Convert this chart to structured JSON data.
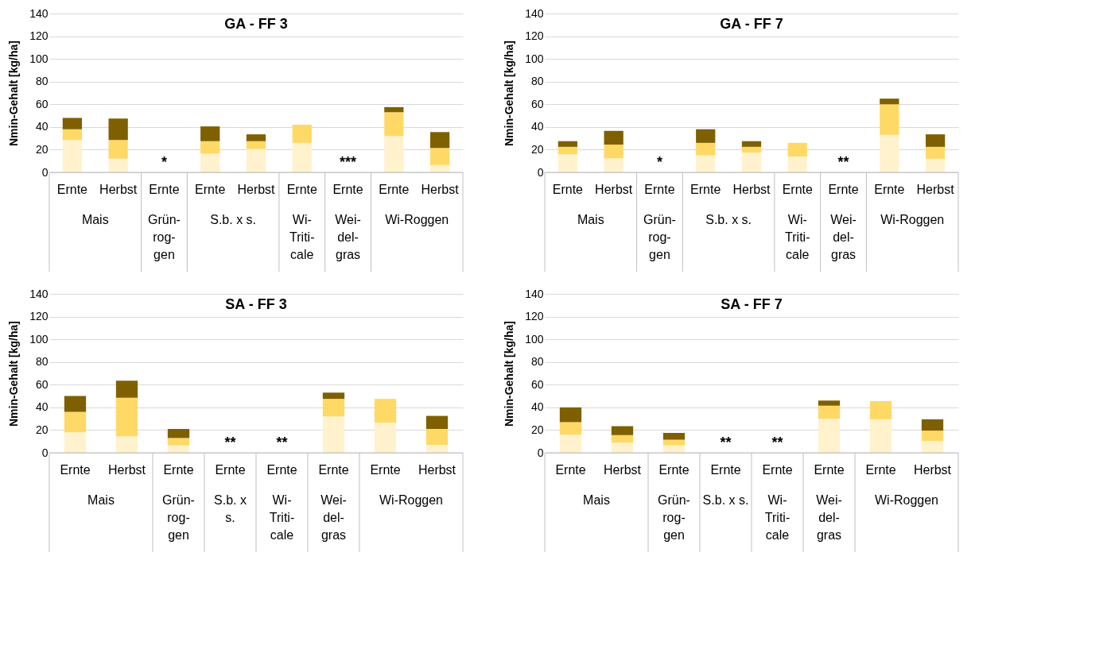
{
  "chart_data": [
    {
      "type": "bar",
      "stacked": true,
      "title": "GA - FF 3",
      "ylabel": "Nmin-Gehalt [kg/ha]",
      "categories": [
        "Ernte",
        "Herbst",
        "Ernte",
        "Ernte",
        "Herbst",
        "Ernte",
        "Ernte",
        "Ernte",
        "Herbst"
      ],
      "series": [
        {
          "color": "#fff2cc",
          "values": [
            28.5,
            12,
            null,
            16.5,
            20.5,
            26,
            null,
            32,
            6.5
          ]
        },
        {
          "color": "#ffd966",
          "values": [
            9.5,
            16.5,
            null,
            11,
            7,
            16,
            null,
            21,
            15
          ]
        },
        {
          "color": "#7f6000",
          "values": [
            10,
            19,
            null,
            13,
            6,
            null,
            null,
            4.5,
            14
          ]
        }
      ],
      "value_labels": [
        null,
        null,
        "*",
        null,
        null,
        null,
        "***",
        null,
        null
      ],
      "annotations": [
        "Mais",
        "Grün-\nrog-\ngen",
        "S.b. x s.",
        "Wi-\nTriti-\ncale",
        "Wei-\ndel-\ngras",
        "Wi-Roggen"
      ],
      "ylim": [
        0,
        140
      ],
      "yticks": [
        0,
        20,
        40,
        60,
        80,
        100,
        120,
        140
      ],
      "grid": "y"
    },
    {
      "type": "bar",
      "stacked": true,
      "title": "GA - FF 7",
      "ylabel": "Nmin-Gehalt [kg/ha]",
      "categories": [
        "Ernte",
        "Herbst",
        "Ernte",
        "Ernte",
        "Herbst",
        "Ernte",
        "Ernte",
        "Ernte",
        "Herbst"
      ],
      "series": [
        {
          "color": "#fff2cc",
          "values": [
            16,
            12.5,
            null,
            15,
            17.5,
            14,
            null,
            33,
            12
          ]
        },
        {
          "color": "#ffd966",
          "values": [
            6.5,
            12,
            null,
            11,
            5,
            12,
            null,
            27,
            10.5
          ]
        },
        {
          "color": "#7f6000",
          "values": [
            5,
            12,
            null,
            12,
            5,
            null,
            null,
            5,
            11
          ]
        }
      ],
      "value_labels": [
        null,
        null,
        "*",
        null,
        null,
        null,
        "**",
        null,
        null
      ],
      "annotations": [
        "Mais",
        "Grün-\nrog-\ngen",
        "S.b. x s.",
        "Wi-\nTriti-\ncale",
        "Wei-\ndel-\ngras",
        "Wi-Roggen"
      ],
      "ylim": [
        0,
        140
      ],
      "yticks": [
        0,
        20,
        40,
        60,
        80,
        100,
        120,
        140
      ],
      "grid": "y"
    },
    {
      "type": "bar",
      "stacked": true,
      "title": "SA - FF 3",
      "ylabel": "Nmin-Gehalt [kg/ha]",
      "categories": [
        "Ernte",
        "Herbst",
        "Ernte",
        "Ernte",
        "Ernte",
        "Ernte",
        "Ernte",
        "Herbst"
      ],
      "series": [
        {
          "color": "#fff2cc",
          "values": [
            18,
            14.5,
            6.5,
            null,
            null,
            32,
            26.5,
            7
          ]
        },
        {
          "color": "#ffd966",
          "values": [
            18,
            34,
            6.5,
            null,
            null,
            15.5,
            21,
            14
          ]
        },
        {
          "color": "#7f6000",
          "values": [
            14,
            15,
            8,
            null,
            null,
            5.5,
            null,
            11.5
          ]
        }
      ],
      "value_labels": [
        null,
        null,
        null,
        "**",
        "**",
        null,
        null,
        null
      ],
      "annotations": [
        "Mais",
        "Grün-\nrog-\ngen",
        "S.b. x\ns.",
        "Wi-\nTriti-\ncale",
        "Wei-\ndel-\ngras",
        "Wi-Roggen"
      ],
      "ylim": [
        0,
        140
      ],
      "yticks": [
        0,
        20,
        40,
        60,
        80,
        100,
        120,
        140
      ],
      "grid": "y"
    },
    {
      "type": "bar",
      "stacked": true,
      "title": "SA - FF 7",
      "ylabel": "Nmin-Gehalt [kg/ha]",
      "categories": [
        "Ernte",
        "Herbst",
        "Ernte",
        "Ernte",
        "Ernte",
        "Ernte",
        "Ernte",
        "Herbst"
      ],
      "series": [
        {
          "color": "#fff2cc",
          "values": [
            16,
            9,
            6.5,
            null,
            null,
            30,
            29.5,
            10.5
          ]
        },
        {
          "color": "#ffd966",
          "values": [
            11,
            6.5,
            5,
            null,
            null,
            11.5,
            16,
            9
          ]
        },
        {
          "color": "#7f6000",
          "values": [
            13,
            8,
            6,
            null,
            null,
            4.5,
            null,
            10
          ]
        }
      ],
      "value_labels": [
        null,
        null,
        null,
        "**",
        "**",
        null,
        null,
        null
      ],
      "annotations": [
        "Mais",
        "Grün-\nrog-\ngen",
        "S.b. x s.",
        "Wi-\nTriti-\ncale",
        "Wei-\ndel-\ngras",
        "Wi-Roggen"
      ],
      "ylim": [
        0,
        140
      ],
      "yticks": [
        0,
        20,
        40,
        60,
        80,
        100,
        120,
        140
      ],
      "grid": "y"
    }
  ]
}
